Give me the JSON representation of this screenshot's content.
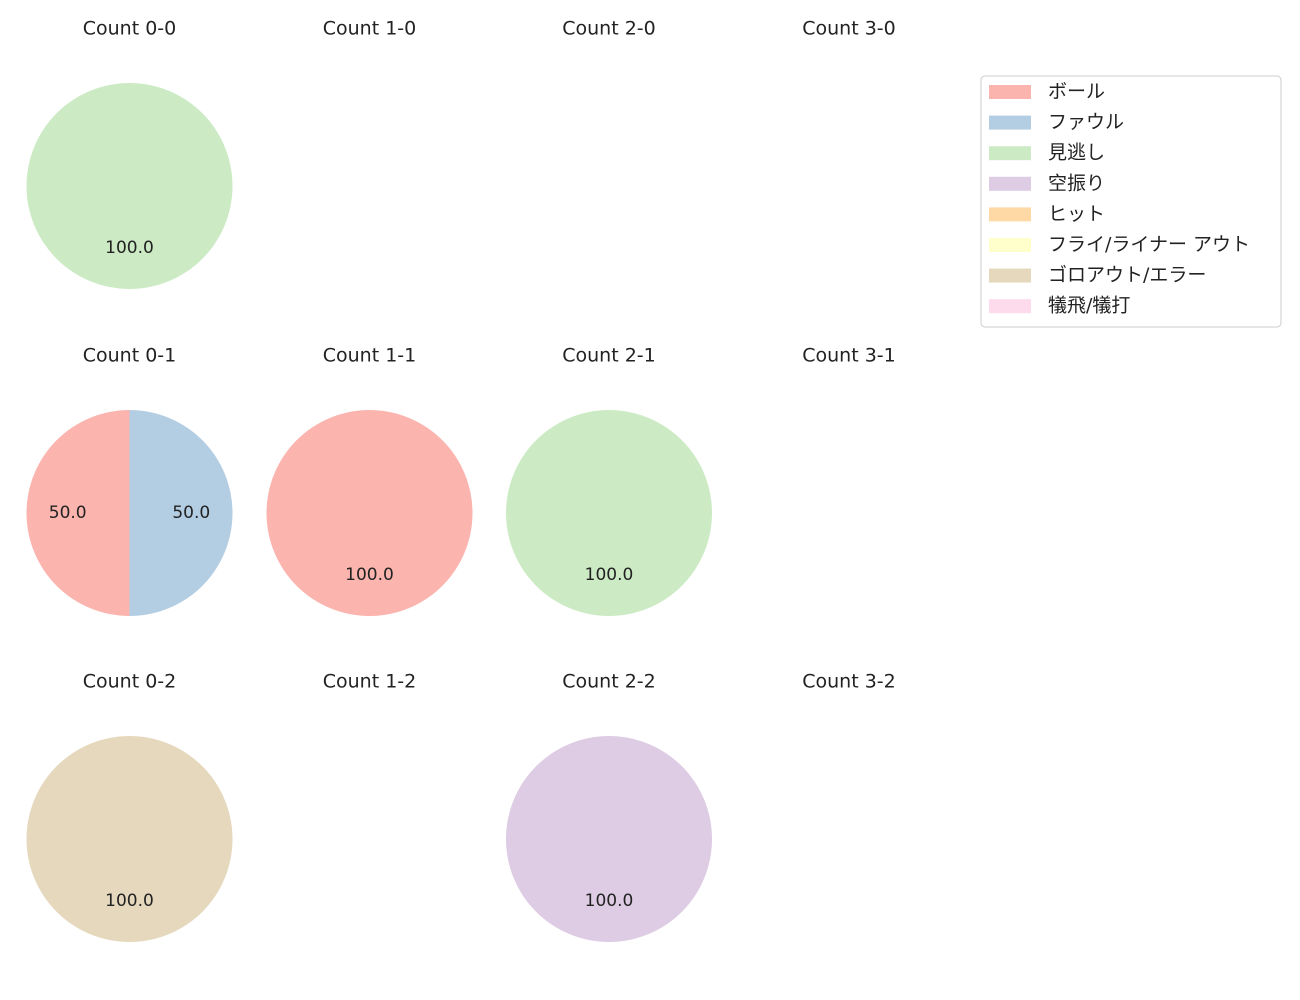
{
  "legend": {
    "entries": [
      {
        "label": "ボール",
        "color": "#fbb4ae"
      },
      {
        "label": "ファウル",
        "color": "#b3cde3"
      },
      {
        "label": "見逃し",
        "color": "#ccebc5"
      },
      {
        "label": "空振り",
        "color": "#decbe4"
      },
      {
        "label": "ヒット",
        "color": "#fed9a6"
      },
      {
        "label": "フライ/ライナー アウト",
        "color": "#ffffcc"
      },
      {
        "label": "ゴロアウト/エラー",
        "color": "#e5d8bd"
      },
      {
        "label": "犠飛/犠打",
        "color": "#fddaec"
      }
    ],
    "placement": "top-right"
  },
  "chart_data": [
    {
      "type": "pie",
      "title": "Count 0-0",
      "slices": [
        {
          "label": "見逃し",
          "value": 100.0
        }
      ]
    },
    {
      "type": "pie",
      "title": "Count 1-0",
      "slices": []
    },
    {
      "type": "pie",
      "title": "Count 2-0",
      "slices": []
    },
    {
      "type": "pie",
      "title": "Count 3-0",
      "slices": []
    },
    {
      "type": "pie",
      "title": "Count 0-1",
      "slices": [
        {
          "label": "ボール",
          "value": 50.0
        },
        {
          "label": "ファウル",
          "value": 50.0
        }
      ]
    },
    {
      "type": "pie",
      "title": "Count 1-1",
      "slices": [
        {
          "label": "ボール",
          "value": 100.0
        }
      ]
    },
    {
      "type": "pie",
      "title": "Count 2-1",
      "slices": [
        {
          "label": "見逃し",
          "value": 100.0
        }
      ]
    },
    {
      "type": "pie",
      "title": "Count 3-1",
      "slices": []
    },
    {
      "type": "pie",
      "title": "Count 0-2",
      "slices": [
        {
          "label": "ゴロアウト/エラー",
          "value": 100.0
        }
      ]
    },
    {
      "type": "pie",
      "title": "Count 1-2",
      "slices": []
    },
    {
      "type": "pie",
      "title": "Count 2-2",
      "slices": [
        {
          "label": "空振り",
          "value": 100.0
        }
      ]
    },
    {
      "type": "pie",
      "title": "Count 3-2",
      "slices": []
    }
  ]
}
